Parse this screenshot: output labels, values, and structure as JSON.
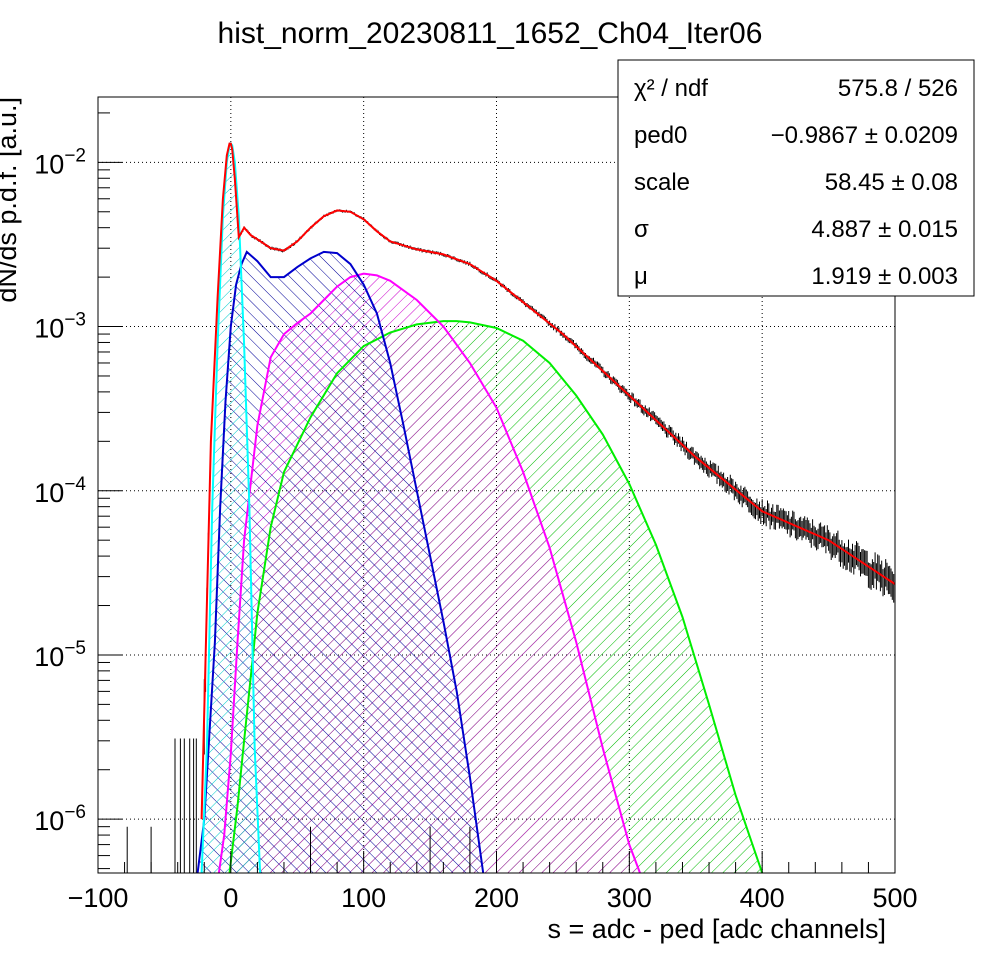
{
  "chart_data": {
    "type": "histogram-fit",
    "title": "hist_norm_20230811_1652_Ch04_Iter06",
    "xlabel": "s = adc - ped [adc channels]",
    "ylabel": "dN/ds p.d.f. [a.u.]",
    "xlim": [
      -100,
      500
    ],
    "ylim": [
      4.7e-07,
      0.025
    ],
    "yscale": "log",
    "grid": true,
    "x_ticks": [
      -100,
      0,
      100,
      200,
      300,
      400,
      500
    ],
    "x_tick_labels": [
      "−100",
      "0",
      "100",
      "200",
      "300",
      "400",
      "500"
    ],
    "y_ticks": [
      {
        "value": 0.01,
        "base": "10",
        "exp": "−2"
      },
      {
        "value": 0.001,
        "base": "10",
        "exp": "−3"
      },
      {
        "value": 0.0001,
        "base": "10",
        "exp": "−4"
      },
      {
        "value": 1e-05,
        "base": "10",
        "exp": "−5"
      },
      {
        "value": 1e-06,
        "base": "10",
        "exp": "−6"
      }
    ],
    "fit_params": {
      "ped0": -0.9867,
      "scale": 58.45,
      "sigma": 4.887,
      "mu": 1.919
    },
    "stats_box": {
      "placement": "top-right",
      "rows": [
        {
          "label": "χ² / ndf",
          "value": "575.8 / 526"
        },
        {
          "label": "ped0",
          "value": "−0.9867 ± 0.0209"
        },
        {
          "label": "scale",
          "value": "58.45 ± 0.08"
        },
        {
          "label": "σ",
          "value": "4.887 ± 0.015"
        },
        {
          "label": "μ",
          "value": "1.919 ± 0.003"
        }
      ]
    },
    "series": [
      {
        "color": "#ff0000",
        "role": "total-fit",
        "x": [
          -22,
          -15,
          -10,
          -6,
          -3,
          -1,
          0,
          1,
          3,
          6,
          10,
          15,
          20,
          30,
          40,
          50,
          60,
          70,
          80,
          90,
          100,
          110,
          120,
          140,
          160,
          180,
          200,
          250,
          300,
          350,
          400,
          450,
          500
        ],
        "y": [
          1e-06,
          0.0002,
          0.0015,
          0.006,
          0.011,
          0.013,
          0.013,
          0.012,
          0.008,
          0.0035,
          0.004,
          0.0036,
          0.0034,
          0.003,
          0.0029,
          0.0033,
          0.004,
          0.0047,
          0.0051,
          0.005,
          0.0045,
          0.0038,
          0.0033,
          0.00295,
          0.00275,
          0.0024,
          0.0019,
          0.0009,
          0.00038,
          0.00016,
          7.5e-05,
          5e-05,
          2.7e-05
        ]
      },
      {
        "color": "#00ffff",
        "role": "pedestal-peak",
        "x": [
          -22,
          -18,
          -14,
          -10,
          -6,
          -3,
          -1,
          0,
          1,
          3,
          6,
          10,
          14,
          18,
          22
        ],
        "y": [
          4.7e-07,
          2.7e-06,
          7.8e-05,
          0.00078,
          0.0047,
          0.01,
          0.0127,
          0.013,
          0.0127,
          0.01,
          0.0047,
          0.00078,
          7.8e-05,
          2.7e-06,
          4.7e-07
        ]
      },
      {
        "color": "#0000cc",
        "role": "1-pe",
        "x": [
          -25,
          -20,
          -12,
          -8,
          -4,
          0,
          4,
          8,
          12,
          20,
          30,
          40,
          50,
          60,
          70,
          80,
          90,
          100,
          110,
          120,
          130,
          140,
          150,
          160,
          170,
          180,
          190
        ],
        "y": [
          4.7e-07,
          1e-06,
          1.2e-05,
          8e-05,
          0.00035,
          0.001,
          0.0018,
          0.0024,
          0.00285,
          0.0025,
          0.002,
          0.002,
          0.0023,
          0.0026,
          0.00285,
          0.0028,
          0.0024,
          0.0018,
          0.0012,
          0.0006,
          0.00025,
          0.0001,
          4e-05,
          1.6e-05,
          6e-06,
          1.8e-06,
          4.7e-07
        ]
      },
      {
        "color": "#ff00ff",
        "role": "2-pe",
        "x": [
          -9,
          -5,
          0,
          5,
          10,
          20,
          30,
          40,
          50,
          60,
          70,
          80,
          90,
          100,
          110,
          120,
          140,
          160,
          180,
          200,
          220,
          240,
          260,
          280,
          300,
          308
        ],
        "y": [
          4.7e-07,
          8e-07,
          2.5e-06,
          1.2e-05,
          5e-05,
          0.00025,
          0.00065,
          0.0009,
          0.00105,
          0.0012,
          0.00145,
          0.00175,
          0.002,
          0.0021,
          0.00205,
          0.0019,
          0.00145,
          0.001,
          0.0006,
          0.00032,
          0.00013,
          4.5e-05,
          1.2e-05,
          2.7e-06,
          7e-07,
          4.7e-07
        ]
      },
      {
        "color": "#00ee00",
        "role": "3-pe",
        "x": [
          -1,
          5,
          10,
          20,
          30,
          40,
          60,
          80,
          100,
          120,
          140,
          160,
          170,
          180,
          200,
          220,
          240,
          260,
          280,
          300,
          320,
          340,
          360,
          380,
          400
        ],
        "y": [
          4.7e-07,
          1.2e-06,
          3e-06,
          1.8e-05,
          6e-05,
          0.00013,
          0.00028,
          0.00052,
          0.00076,
          0.00092,
          0.00103,
          0.00108,
          0.00108,
          0.00106,
          0.00098,
          0.00082,
          0.0006,
          0.00038,
          0.00022,
          0.00011,
          4.7e-05,
          1.7e-05,
          5e-06,
          1.4e-06,
          4.7e-07
        ]
      }
    ]
  }
}
